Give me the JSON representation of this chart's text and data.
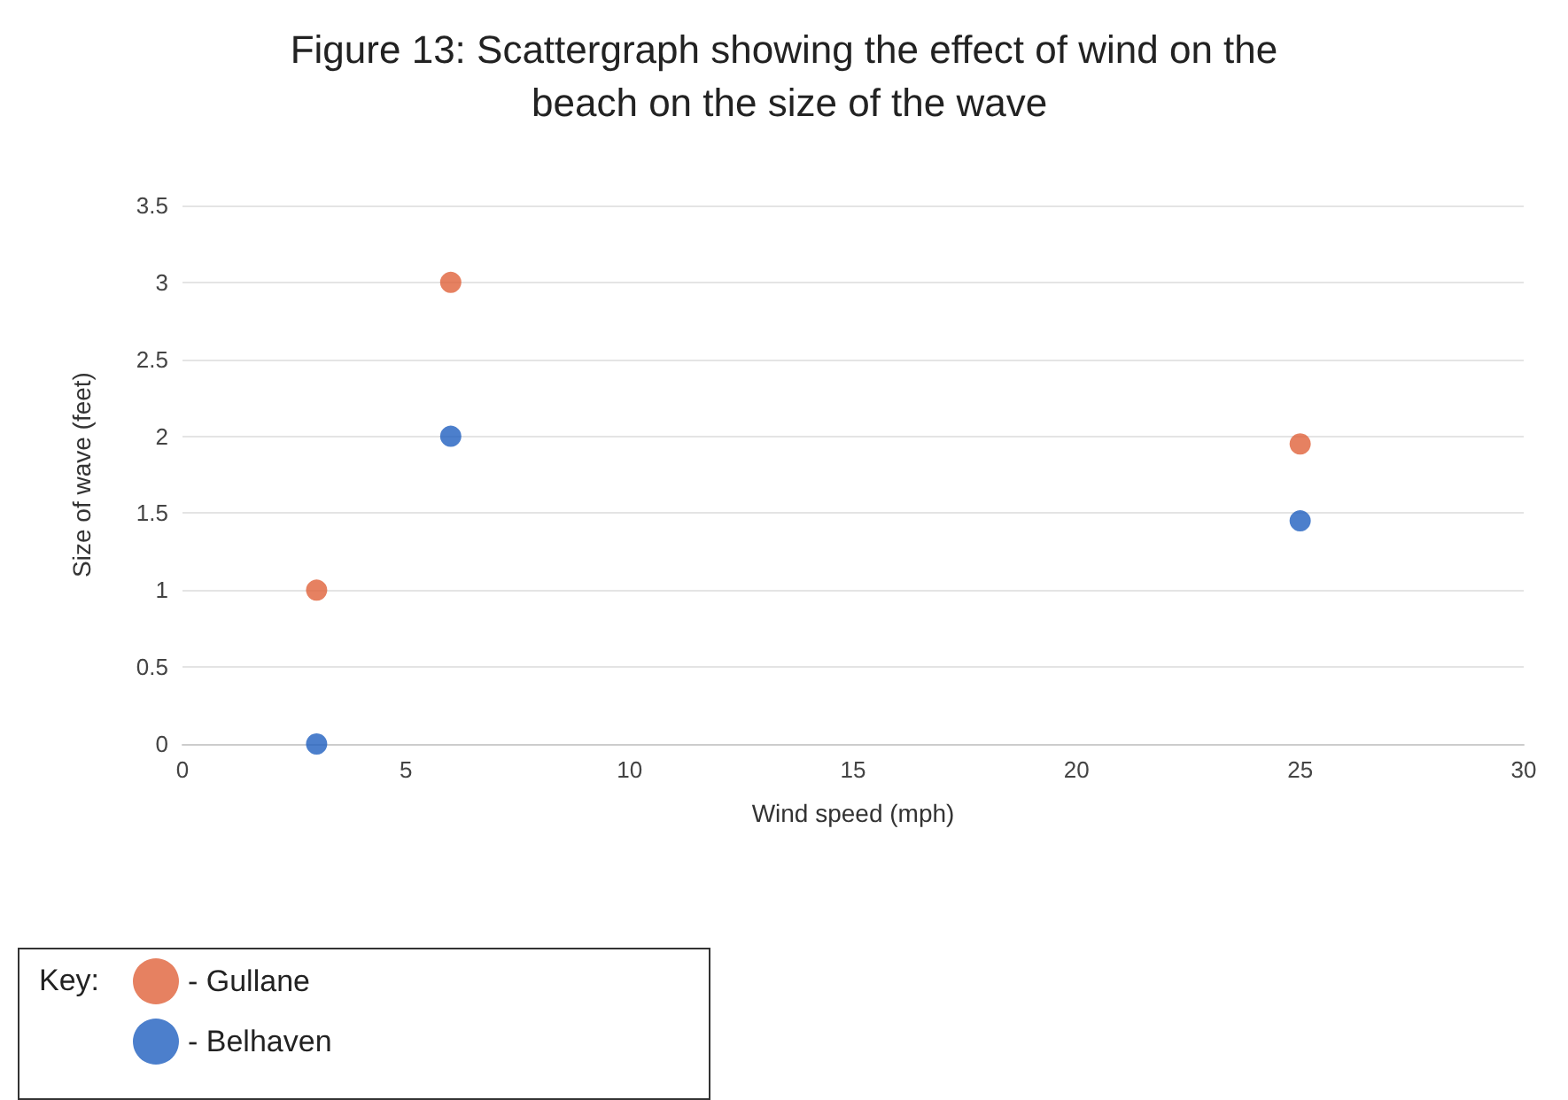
{
  "chart_data": {
    "type": "scatter",
    "title": "Figure 13: Scattergraph showing the effect of wind on the beach on the size of the wave",
    "xlabel": "Wind speed (mph)",
    "ylabel": "Size of wave (feet)",
    "legend_title": "Key:",
    "x": [
      3,
      6,
      25
    ],
    "series": [
      {
        "name": "- Gullane",
        "color": "#e0623a",
        "values": [
          1,
          3,
          1.95
        ]
      },
      {
        "name": "- Belhaven",
        "color": "#1f5fbf",
        "values": [
          0,
          2,
          1.45
        ]
      }
    ],
    "xlim": [
      0,
      30
    ],
    "xticks": [
      0,
      5,
      10,
      15,
      20,
      25,
      30
    ],
    "ylim": [
      0,
      3.5
    ],
    "yticks": [
      0,
      0.5,
      1,
      1.5,
      2,
      2.5,
      3,
      3.5
    ],
    "grid": "y",
    "legend": "bottom left",
    "marker": "circle"
  }
}
